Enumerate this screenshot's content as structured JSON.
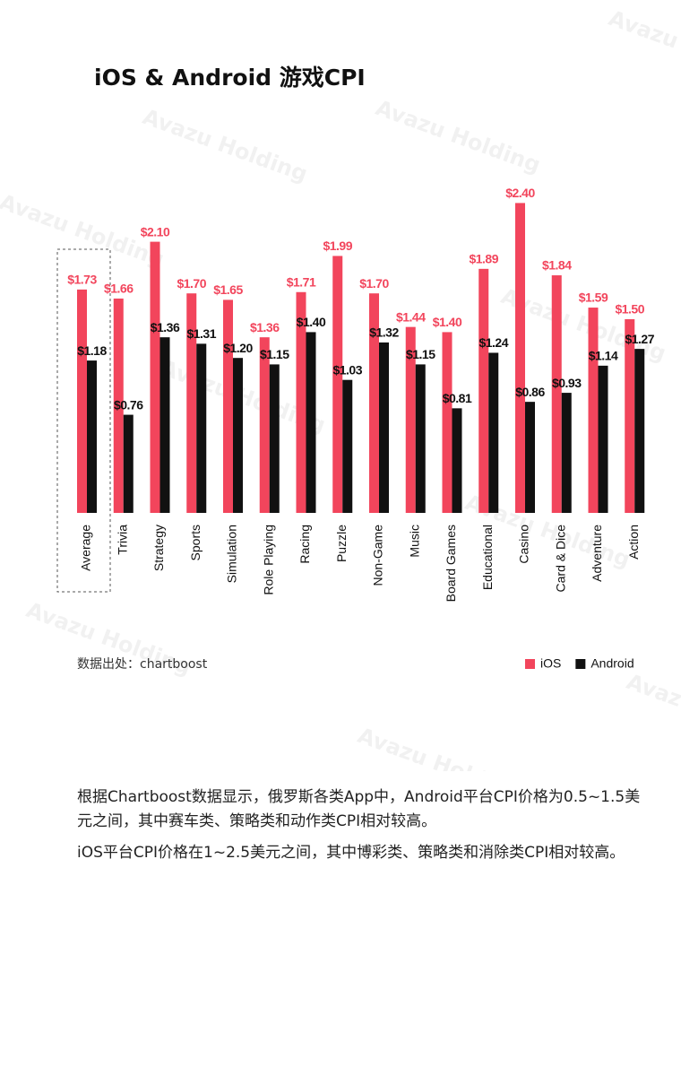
{
  "chart_data": {
    "type": "bar",
    "title": "iOS & Android 游戏CPI",
    "categories": [
      "Average",
      "Trivia",
      "Strategy",
      "Sports",
      "Simulation",
      "Role Playing",
      "Racing",
      "Puzzle",
      "Non-Game",
      "Music",
      "Board Games",
      "Educational",
      "Casino",
      "Card & Dice",
      "Adventure",
      "Action"
    ],
    "series": [
      {
        "name": "iOS",
        "color": "#f2455c",
        "values": [
          1.73,
          1.66,
          2.1,
          1.7,
          1.65,
          1.36,
          1.71,
          1.99,
          1.7,
          1.44,
          1.4,
          1.89,
          2.4,
          1.84,
          1.59,
          1.5
        ],
        "value_labels": [
          "$1.73",
          "$1.66",
          "$2.10",
          "$1.70",
          "$1.65",
          "$1.36",
          "$1.71",
          "$1.99",
          "$1.70",
          "$1.44",
          "$1.40",
          "$1.89",
          "$2.40",
          "$1.84",
          "$1.59",
          "$1.50"
        ]
      },
      {
        "name": "Android",
        "color": "#111111",
        "values": [
          1.18,
          0.76,
          1.36,
          1.31,
          1.2,
          1.15,
          1.4,
          1.03,
          1.32,
          1.15,
          0.81,
          1.24,
          0.86,
          0.93,
          1.14,
          1.27
        ],
        "value_labels": [
          "$1.18",
          "$0.76",
          "$1.36",
          "$1.31",
          "$1.20",
          "$1.15",
          "$1.40",
          "$1.03",
          "$1.32",
          "$1.15",
          "$0.81",
          "$1.24",
          "$0.86",
          "$0.93",
          "$1.14",
          "$1.27"
        ]
      }
    ],
    "source": "数据出处：chartboost"
  },
  "watermark": "Avazu Holding",
  "paragraphs": [
    "根据Chartboost数据显示，俄罗斯各类App中，Android平台CPI价格为0.5~1.5美元之间，其中赛车类、策略类和动作类CPI相对较高。",
    "iOS平台CPI价格在1~2.5美元之间，其中博彩类、策略类和消除类CPI相对较高。"
  ]
}
